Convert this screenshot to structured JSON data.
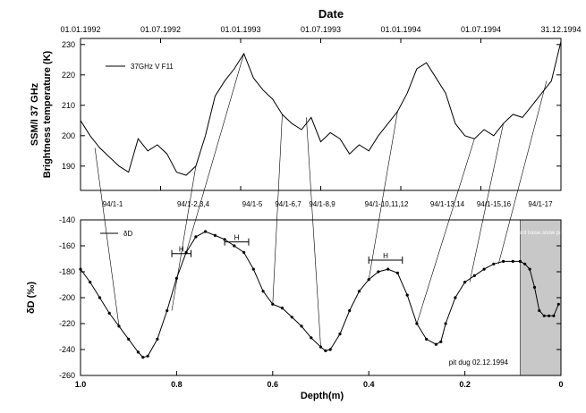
{
  "chart_data": [
    {
      "type": "line",
      "title": "Date",
      "ylabel_line1": "SSM/I 37 GHz",
      "ylabel_line2": "Brightness temperature (K)",
      "x_tick_labels": [
        "01.01.1992",
        "01.07.1992",
        "01.01.1993",
        "01.07.1993",
        "01.01.1994",
        "01.07.1994",
        "31.12.1994"
      ],
      "ylim": [
        182,
        232
      ],
      "y_ticks": [
        190,
        200,
        210,
        220,
        230
      ],
      "legend": "37GHz V F11",
      "series": [
        {
          "name": "37GHz V F11",
          "x": [
            0.0,
            0.02,
            0.04,
            0.06,
            0.08,
            0.1,
            0.12,
            0.14,
            0.16,
            0.18,
            0.2,
            0.22,
            0.24,
            0.26,
            0.28,
            0.3,
            0.32,
            0.34,
            0.36,
            0.38,
            0.4,
            0.42,
            0.44,
            0.46,
            0.48,
            0.5,
            0.52,
            0.54,
            0.56,
            0.58,
            0.6,
            0.62,
            0.64,
            0.66,
            0.68,
            0.7,
            0.72,
            0.74,
            0.76,
            0.78,
            0.8,
            0.82,
            0.84,
            0.86,
            0.88,
            0.9,
            0.92,
            0.94,
            0.96,
            0.98,
            1.0
          ],
          "y": [
            205,
            200,
            196,
            193,
            190,
            188,
            199,
            195,
            197,
            194,
            188,
            187,
            190,
            200,
            213,
            218,
            222,
            227,
            219,
            215,
            212,
            207,
            204,
            202,
            206,
            198,
            201,
            199,
            194,
            197,
            195,
            200,
            204,
            208,
            214,
            222,
            224,
            219,
            214,
            204,
            200,
            199,
            202,
            200,
            204,
            207,
            206,
            210,
            214,
            218,
            231
          ]
        }
      ]
    },
    {
      "type": "line",
      "xlabel": "Depth(m)",
      "ylabel": "δD (‰)",
      "xlim": [
        1.0,
        0.0
      ],
      "ylim": [
        -260,
        -140
      ],
      "x_ticks": [
        1.0,
        0.8,
        0.6,
        0.4,
        0.2,
        0
      ],
      "x_tick_labels": [
        "1.0",
        "0.8",
        "0.6",
        "0.4",
        "0.2",
        "0"
      ],
      "y_ticks": [
        -140,
        -160,
        -180,
        -200,
        -220,
        -240,
        -260
      ],
      "legend": "δD",
      "annotations": {
        "site": "pit dug 02.12.1994",
        "shaded_region": "recent loose snow pack",
        "shaded_range_m": [
          0.0,
          0.085
        ],
        "h_marker": "H",
        "sample_labels": [
          "94/1-1",
          "94/1-2,3,4",
          "94/1-5",
          "94/1-6,7",
          "94/1-8,9",
          "94/1-10,11,12",
          "94/1-13,14",
          "94/1-15,16",
          "94/1-17"
        ]
      },
      "series": [
        {
          "name": "δD",
          "x": [
            1.0,
            0.98,
            0.96,
            0.94,
            0.92,
            0.9,
            0.88,
            0.87,
            0.86,
            0.84,
            0.82,
            0.8,
            0.78,
            0.76,
            0.74,
            0.72,
            0.7,
            0.68,
            0.66,
            0.64,
            0.62,
            0.6,
            0.58,
            0.56,
            0.54,
            0.52,
            0.5,
            0.49,
            0.48,
            0.46,
            0.44,
            0.42,
            0.4,
            0.38,
            0.36,
            0.34,
            0.32,
            0.3,
            0.28,
            0.26,
            0.25,
            0.24,
            0.22,
            0.2,
            0.18,
            0.16,
            0.14,
            0.12,
            0.1,
            0.085,
            0.075,
            0.065,
            0.055,
            0.045,
            0.035,
            0.025,
            0.015,
            0.005
          ],
          "y": [
            -178,
            -188,
            -200,
            -212,
            -222,
            -232,
            -242,
            -246,
            -245,
            -232,
            -210,
            -185,
            -165,
            -153,
            -149,
            -152,
            -155,
            -160,
            -165,
            -178,
            -195,
            -205,
            -208,
            -215,
            -222,
            -231,
            -238,
            -241,
            -240,
            -228,
            -210,
            -195,
            -186,
            -180,
            -178,
            -181,
            -198,
            -220,
            -232,
            -236,
            -234,
            -220,
            -200,
            -188,
            -183,
            -178,
            -174,
            -172,
            -172,
            -172,
            -174,
            -178,
            -192,
            -210,
            -214,
            -214,
            -214,
            -205
          ]
        }
      ]
    }
  ]
}
